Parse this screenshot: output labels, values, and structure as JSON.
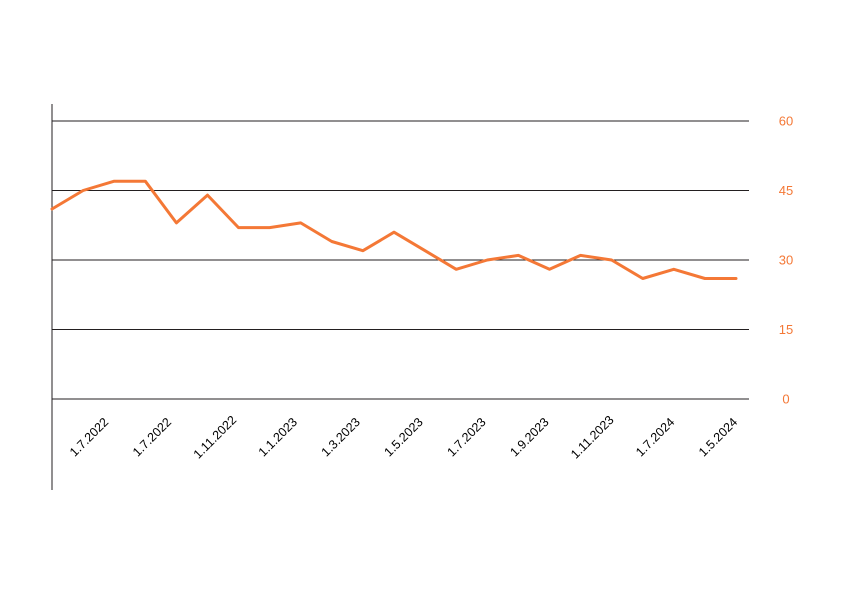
{
  "colors": {
    "series": "#f47836",
    "axis": "#231f20",
    "grid": "#231f20",
    "tick_text": "#000000"
  },
  "chart_data": {
    "type": "line",
    "title": "",
    "xlabel": "",
    "ylabel": "",
    "ylim": [
      0,
      60
    ],
    "y_ticks": [
      "0",
      "15",
      "30",
      "45",
      "60"
    ],
    "y_axis_side": "right",
    "grid": true,
    "legend": "none",
    "x_tick_labels": [
      "1.7.2022",
      "1.7.2022",
      "1.11.2022",
      "1.1.2023",
      "1.3.2023",
      "1.5.2023",
      "1.7.2023",
      "1.9.2023",
      "1.11.2023",
      "1.7.2024",
      "1.5.2024"
    ],
    "series": [
      {
        "values": [
          41,
          45,
          47,
          47,
          38,
          44,
          37,
          37,
          38,
          34,
          32,
          36,
          32,
          28,
          30,
          31,
          28,
          31,
          30,
          26,
          28,
          26,
          26
        ]
      }
    ]
  }
}
